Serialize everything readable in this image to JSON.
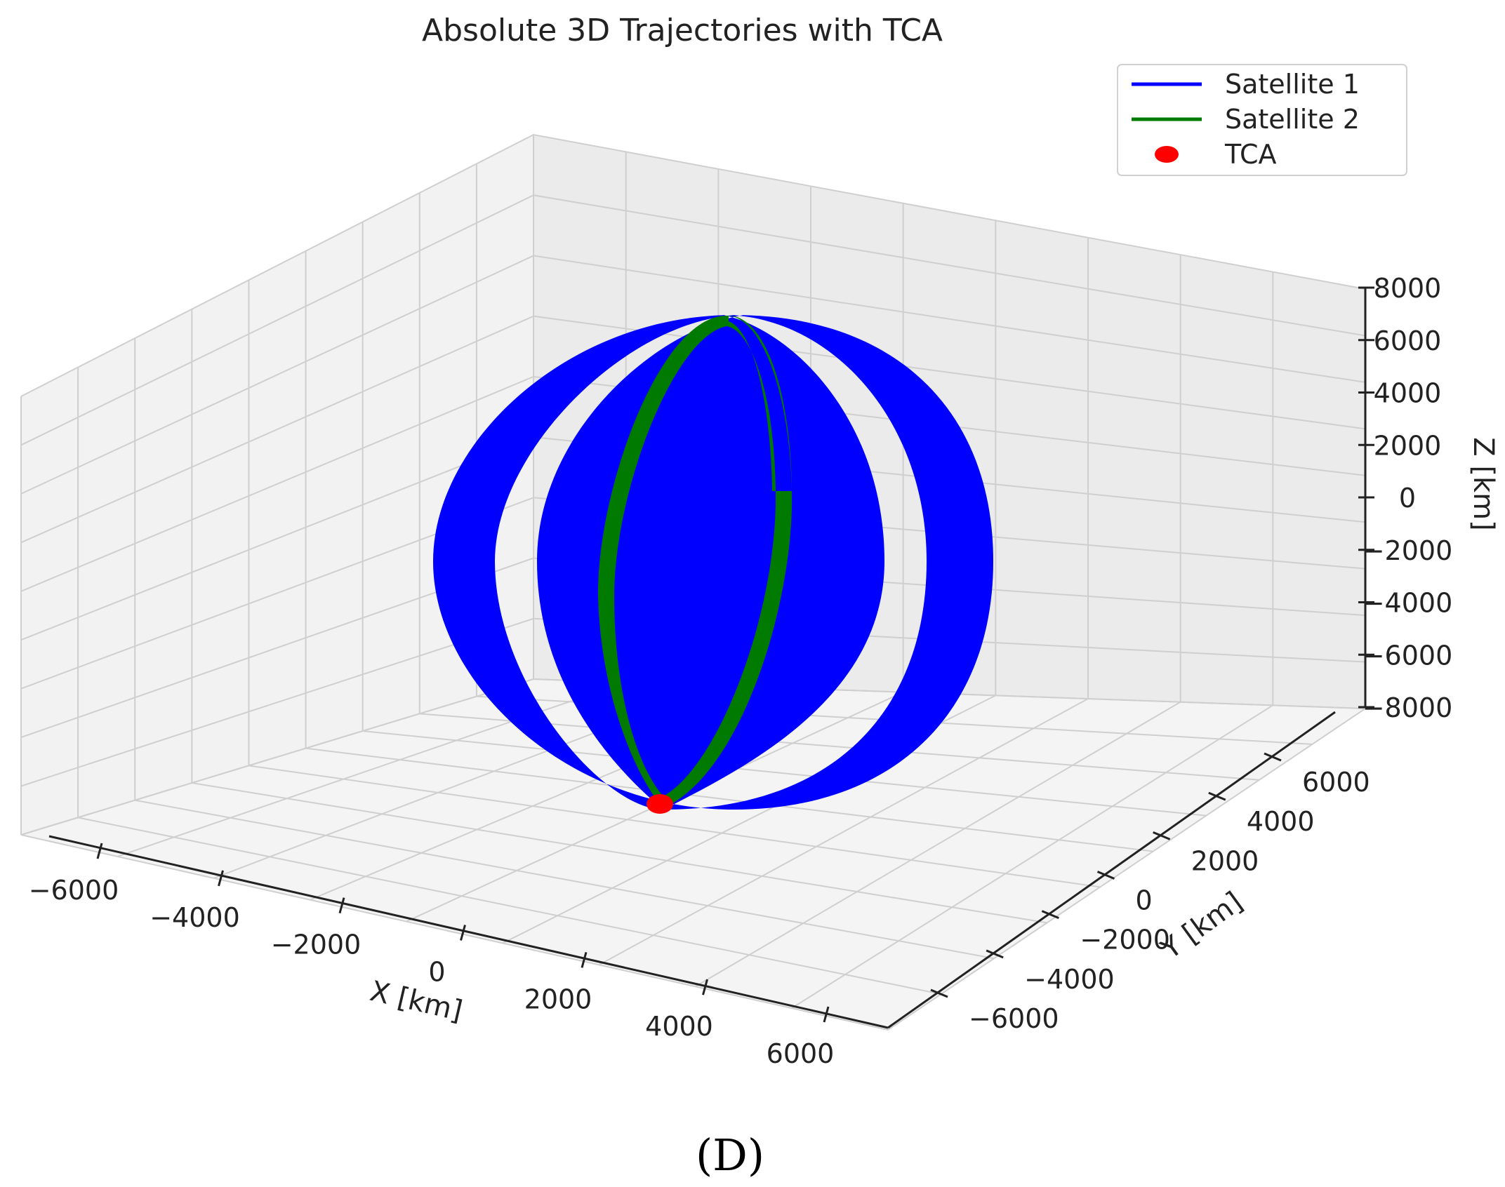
{
  "chart_data": {
    "type": "line",
    "projection": "3d",
    "title": "Absolute 3D Trajectories with TCA",
    "xlabel": "X [km]",
    "ylabel": "Y [km]",
    "zlabel": "Z [km]",
    "x_ticks": [
      "−6000",
      "−4000",
      "−2000",
      "0",
      "2000",
      "4000",
      "6000"
    ],
    "y_ticks": [
      "−6000",
      "−4000",
      "−2000",
      "0",
      "2000",
      "4000",
      "6000"
    ],
    "z_ticks": [
      "−8000",
      "−6000",
      "−4000",
      "−2000",
      "0",
      "2000",
      "4000",
      "6000",
      "8000"
    ],
    "xlim": [
      -6500,
      6500
    ],
    "ylim": [
      -6500,
      6500
    ],
    "zlim": [
      -8000,
      8000
    ],
    "grid": true,
    "legend_position": "top-right",
    "series": [
      {
        "name": "Satellite 1",
        "kind": "orbit band",
        "color": "#0000ff"
      },
      {
        "name": "Satellite 2",
        "kind": "orbit band",
        "color": "#007a00"
      }
    ],
    "markers": [
      {
        "name": "TCA",
        "color": "#ff0000"
      }
    ],
    "caption": "(D)"
  }
}
